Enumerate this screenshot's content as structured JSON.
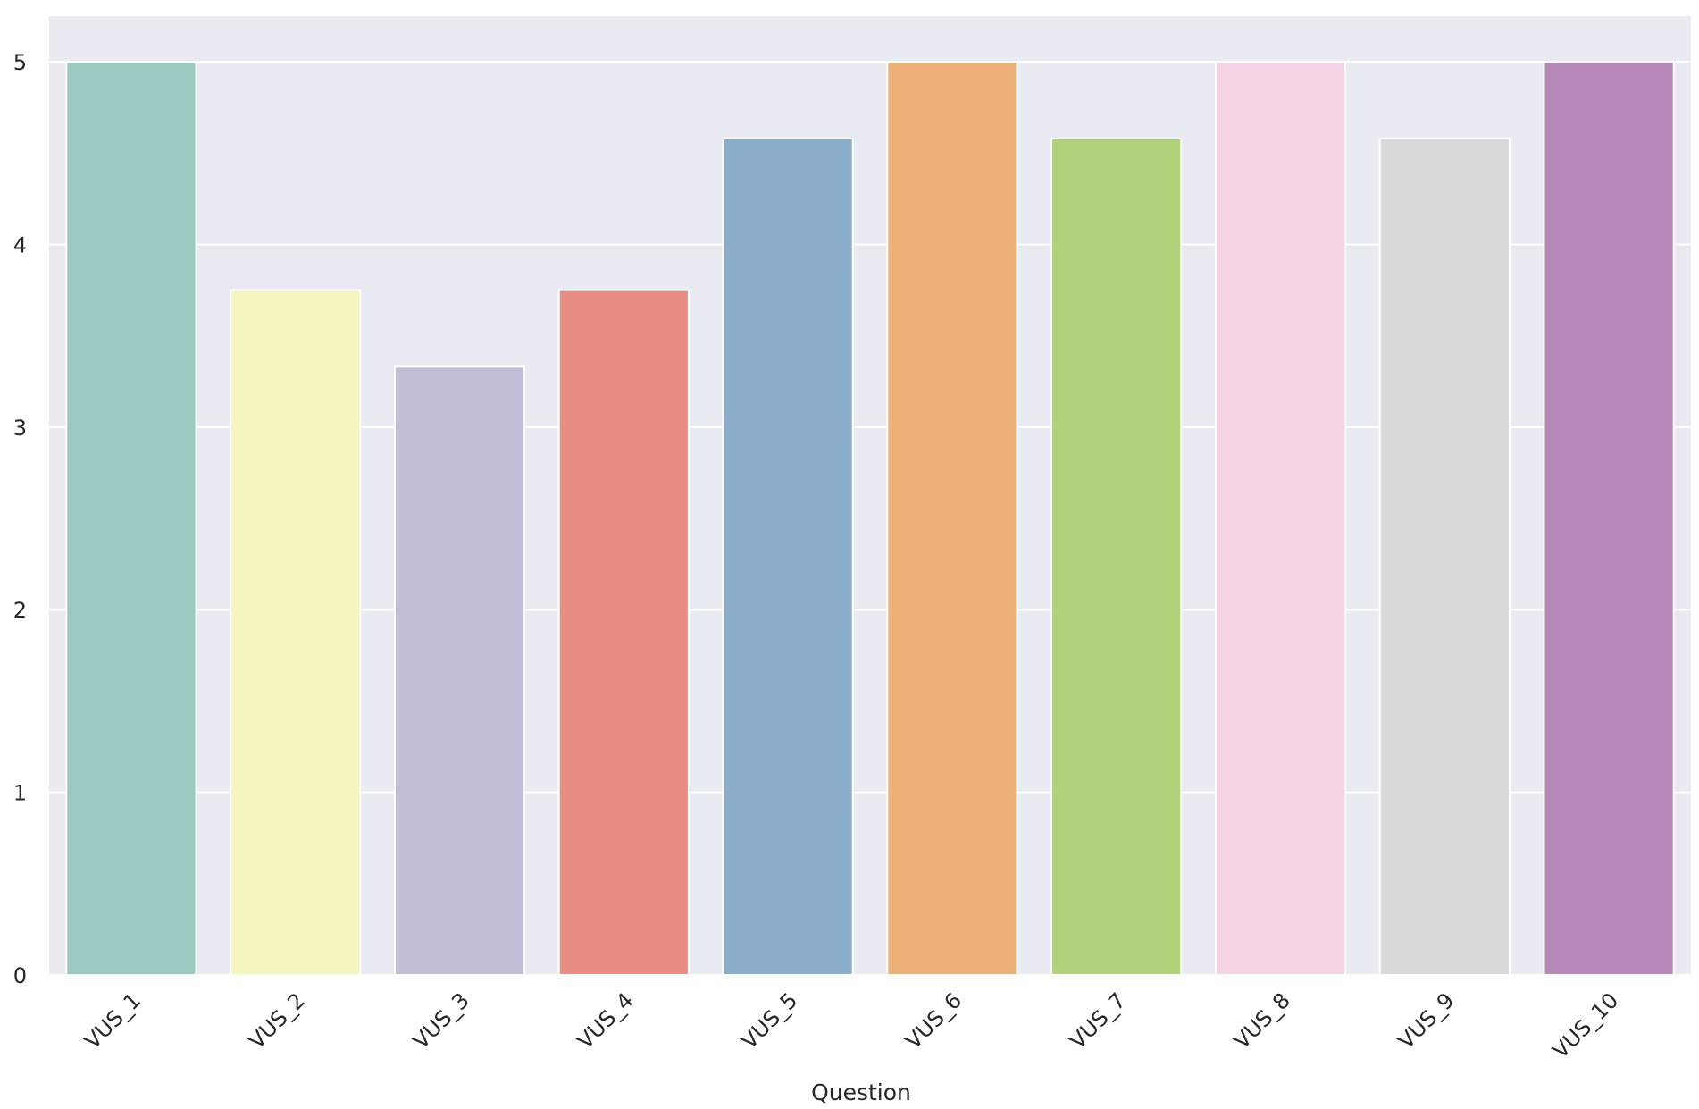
{
  "chart_data": {
    "type": "bar",
    "title": "",
    "xlabel": "Question",
    "ylabel": "",
    "categories": [
      "VUS_1",
      "VUS_2",
      "VUS_3",
      "VUS_4",
      "VUS_5",
      "VUS_6",
      "VUS_7",
      "VUS_8",
      "VUS_9",
      "VUS_10"
    ],
    "values": [
      5.0,
      3.75,
      3.33,
      3.75,
      4.58,
      5.0,
      4.58,
      5.0,
      4.58,
      5.0
    ],
    "colors": [
      "#99c9c1",
      "#f5f5c0",
      "#c1bdd6",
      "#e88d82",
      "#8aaec9",
      "#eab076",
      "#b0d27b",
      "#f4d3e3",
      "#d9d9d9",
      "#b688b7"
    ],
    "ylim": [
      0,
      5.25
    ],
    "yticks": [
      0,
      1,
      2,
      3,
      4,
      5
    ],
    "grid": true,
    "legend": "none",
    "background": "#eaeaf2",
    "grid_color": "#ffffff",
    "bar_edge_color": "#ffffff",
    "tick_rotation_degrees": 45
  }
}
